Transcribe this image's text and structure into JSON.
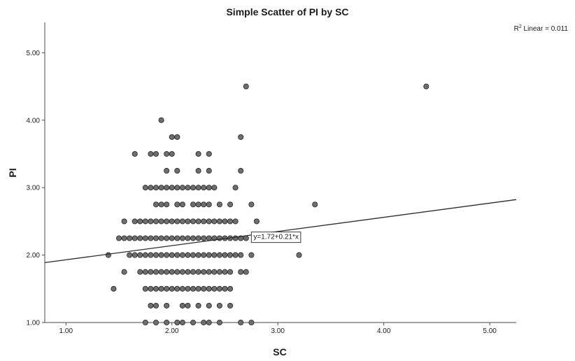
{
  "chart_data": {
    "type": "scatter",
    "title": "Simple Scatter of PI by SC",
    "xlabel": "SC",
    "ylabel": "PI",
    "xlim": [
      0.8,
      5.25
    ],
    "ylim": [
      1.0,
      5.45
    ],
    "xticks": [
      "1.00",
      "2.00",
      "3.00",
      "4.00",
      "5.00"
    ],
    "yticks": [
      "1.00",
      "2.00",
      "3.00",
      "4.00",
      "5.00"
    ],
    "fit_line": {
      "intercept": 1.72,
      "slope": 0.21,
      "label": "y=1.72+0.21*x",
      "label_at": [
        2.75,
        2.28
      ]
    },
    "r2_label": {
      "prefix": "R",
      "sup": "2",
      "suffix": " Linear = 0.011"
    },
    "point_color": "#6e6e6e",
    "point_stroke": "#2f2f2f",
    "points": [
      [
        1.75,
        1.0
      ],
      [
        1.85,
        1.0
      ],
      [
        1.95,
        1.0
      ],
      [
        2.05,
        1.0
      ],
      [
        2.1,
        1.0
      ],
      [
        2.2,
        1.0
      ],
      [
        2.3,
        1.0
      ],
      [
        2.35,
        1.0
      ],
      [
        2.45,
        1.0
      ],
      [
        2.65,
        1.0
      ],
      [
        2.75,
        1.0
      ],
      [
        1.8,
        1.25
      ],
      [
        1.85,
        1.25
      ],
      [
        1.95,
        1.25
      ],
      [
        2.1,
        1.25
      ],
      [
        2.15,
        1.25
      ],
      [
        2.25,
        1.25
      ],
      [
        2.35,
        1.25
      ],
      [
        2.45,
        1.25
      ],
      [
        2.55,
        1.25
      ],
      [
        1.45,
        1.5
      ],
      [
        1.75,
        1.5
      ],
      [
        1.8,
        1.5
      ],
      [
        1.85,
        1.5
      ],
      [
        1.9,
        1.5
      ],
      [
        1.95,
        1.5
      ],
      [
        2.0,
        1.5
      ],
      [
        2.05,
        1.5
      ],
      [
        2.1,
        1.5
      ],
      [
        2.15,
        1.5
      ],
      [
        2.2,
        1.5
      ],
      [
        2.25,
        1.5
      ],
      [
        2.3,
        1.5
      ],
      [
        2.35,
        1.5
      ],
      [
        2.4,
        1.5
      ],
      [
        2.45,
        1.5
      ],
      [
        2.5,
        1.5
      ],
      [
        2.55,
        1.5
      ],
      [
        1.55,
        1.75
      ],
      [
        1.7,
        1.75
      ],
      [
        1.75,
        1.75
      ],
      [
        1.8,
        1.75
      ],
      [
        1.85,
        1.75
      ],
      [
        1.9,
        1.75
      ],
      [
        1.95,
        1.75
      ],
      [
        2.0,
        1.75
      ],
      [
        2.05,
        1.75
      ],
      [
        2.1,
        1.75
      ],
      [
        2.15,
        1.75
      ],
      [
        2.2,
        1.75
      ],
      [
        2.25,
        1.75
      ],
      [
        2.3,
        1.75
      ],
      [
        2.35,
        1.75
      ],
      [
        2.4,
        1.75
      ],
      [
        2.45,
        1.75
      ],
      [
        2.5,
        1.75
      ],
      [
        2.55,
        1.75
      ],
      [
        2.65,
        1.75
      ],
      [
        2.7,
        1.75
      ],
      [
        1.4,
        2.0
      ],
      [
        1.6,
        2.0
      ],
      [
        1.65,
        2.0
      ],
      [
        1.7,
        2.0
      ],
      [
        1.75,
        2.0
      ],
      [
        1.8,
        2.0
      ],
      [
        1.85,
        2.0
      ],
      [
        1.9,
        2.0
      ],
      [
        1.95,
        2.0
      ],
      [
        2.0,
        2.0
      ],
      [
        2.05,
        2.0
      ],
      [
        2.1,
        2.0
      ],
      [
        2.15,
        2.0
      ],
      [
        2.2,
        2.0
      ],
      [
        2.25,
        2.0
      ],
      [
        2.3,
        2.0
      ],
      [
        2.35,
        2.0
      ],
      [
        2.4,
        2.0
      ],
      [
        2.45,
        2.0
      ],
      [
        2.5,
        2.0
      ],
      [
        2.55,
        2.0
      ],
      [
        2.6,
        2.0
      ],
      [
        2.65,
        2.0
      ],
      [
        2.75,
        2.0
      ],
      [
        3.2,
        2.0
      ],
      [
        1.5,
        2.25
      ],
      [
        1.55,
        2.25
      ],
      [
        1.6,
        2.25
      ],
      [
        1.65,
        2.25
      ],
      [
        1.7,
        2.25
      ],
      [
        1.75,
        2.25
      ],
      [
        1.8,
        2.25
      ],
      [
        1.85,
        2.25
      ],
      [
        1.9,
        2.25
      ],
      [
        1.95,
        2.25
      ],
      [
        2.0,
        2.25
      ],
      [
        2.05,
        2.25
      ],
      [
        2.1,
        2.25
      ],
      [
        2.15,
        2.25
      ],
      [
        2.2,
        2.25
      ],
      [
        2.25,
        2.25
      ],
      [
        2.3,
        2.25
      ],
      [
        2.35,
        2.25
      ],
      [
        2.4,
        2.25
      ],
      [
        2.45,
        2.25
      ],
      [
        2.5,
        2.25
      ],
      [
        2.55,
        2.25
      ],
      [
        2.6,
        2.25
      ],
      [
        2.65,
        2.25
      ],
      [
        2.7,
        2.25
      ],
      [
        1.55,
        2.5
      ],
      [
        1.65,
        2.5
      ],
      [
        1.7,
        2.5
      ],
      [
        1.75,
        2.5
      ],
      [
        1.8,
        2.5
      ],
      [
        1.85,
        2.5
      ],
      [
        1.9,
        2.5
      ],
      [
        1.95,
        2.5
      ],
      [
        2.0,
        2.5
      ],
      [
        2.05,
        2.5
      ],
      [
        2.1,
        2.5
      ],
      [
        2.15,
        2.5
      ],
      [
        2.2,
        2.5
      ],
      [
        2.25,
        2.5
      ],
      [
        2.3,
        2.5
      ],
      [
        2.35,
        2.5
      ],
      [
        2.4,
        2.5
      ],
      [
        2.45,
        2.5
      ],
      [
        2.5,
        2.5
      ],
      [
        2.55,
        2.5
      ],
      [
        2.6,
        2.5
      ],
      [
        2.8,
        2.5
      ],
      [
        1.85,
        2.75
      ],
      [
        1.9,
        2.75
      ],
      [
        1.95,
        2.75
      ],
      [
        2.05,
        2.75
      ],
      [
        2.1,
        2.75
      ],
      [
        2.2,
        2.75
      ],
      [
        2.25,
        2.75
      ],
      [
        2.3,
        2.75
      ],
      [
        2.35,
        2.75
      ],
      [
        2.45,
        2.75
      ],
      [
        2.55,
        2.75
      ],
      [
        2.75,
        2.75
      ],
      [
        3.35,
        2.75
      ],
      [
        1.75,
        3.0
      ],
      [
        1.8,
        3.0
      ],
      [
        1.85,
        3.0
      ],
      [
        1.9,
        3.0
      ],
      [
        1.95,
        3.0
      ],
      [
        2.0,
        3.0
      ],
      [
        2.05,
        3.0
      ],
      [
        2.1,
        3.0
      ],
      [
        2.15,
        3.0
      ],
      [
        2.2,
        3.0
      ],
      [
        2.25,
        3.0
      ],
      [
        2.3,
        3.0
      ],
      [
        2.35,
        3.0
      ],
      [
        2.4,
        3.0
      ],
      [
        2.6,
        3.0
      ],
      [
        1.95,
        3.25
      ],
      [
        2.05,
        3.25
      ],
      [
        2.25,
        3.25
      ],
      [
        2.35,
        3.25
      ],
      [
        2.65,
        3.25
      ],
      [
        1.65,
        3.5
      ],
      [
        1.8,
        3.5
      ],
      [
        1.85,
        3.5
      ],
      [
        1.95,
        3.5
      ],
      [
        2.0,
        3.5
      ],
      [
        2.25,
        3.5
      ],
      [
        2.35,
        3.5
      ],
      [
        2.0,
        3.75
      ],
      [
        2.05,
        3.75
      ],
      [
        2.65,
        3.75
      ],
      [
        1.9,
        4.0
      ],
      [
        2.7,
        4.5
      ],
      [
        4.4,
        4.5
      ]
    ]
  }
}
